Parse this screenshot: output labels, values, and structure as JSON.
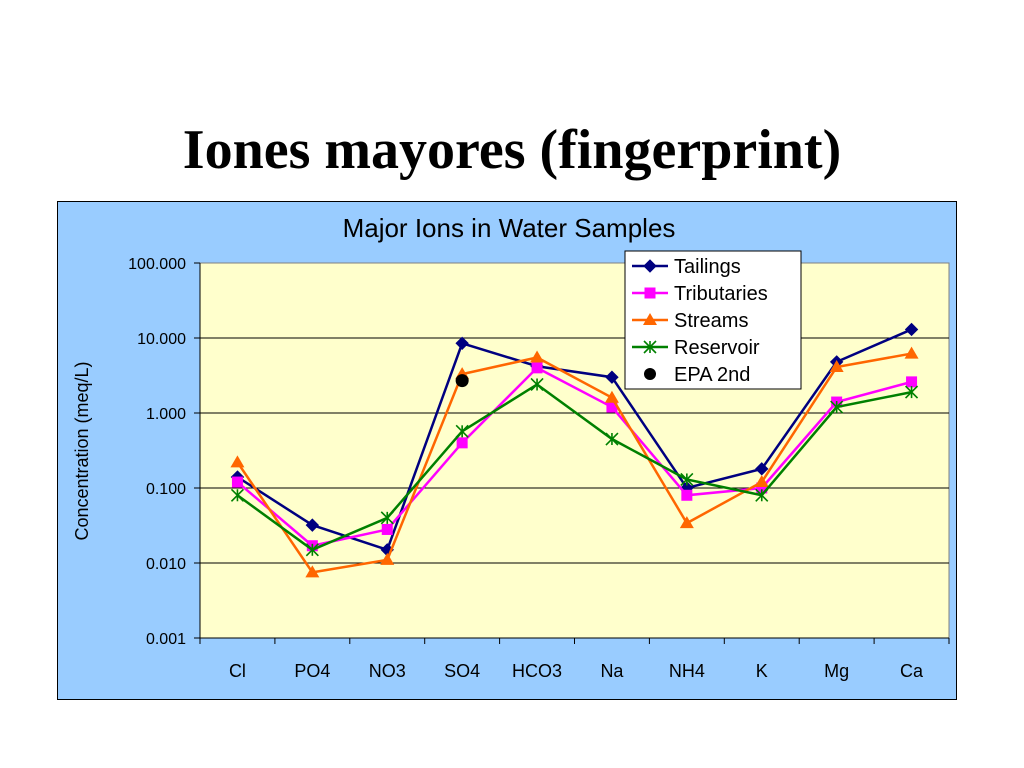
{
  "slide": {
    "title": "Iones mayores (fingerprint)"
  },
  "colors": {
    "chart_background": "#99ccff",
    "plot_background": "#ffffcc",
    "Tailings": "#000080",
    "Tributaries": "#ff00ff",
    "Streams": "#ff6600",
    "Reservoir": "#008000",
    "EPA 2nd": "#000000"
  },
  "chart_data": {
    "type": "line",
    "title": "Major Ions in Water Samples",
    "xlabel": "",
    "ylabel": "Concentration (meq/L)",
    "yscale": "log",
    "ylim": [
      0.001,
      100
    ],
    "ytick_labels": [
      "100.000",
      "10.000",
      "1.000",
      "0.100",
      "0.010",
      "0.001"
    ],
    "grid": "horizontal",
    "legend_position": "top-right",
    "categories": [
      "Cl",
      "PO4",
      "NO3",
      "SO4",
      "HCO3",
      "Na",
      "NH4",
      "K",
      "Mg",
      "Ca"
    ],
    "series": [
      {
        "name": "Tailings",
        "marker": "diamond",
        "values": [
          0.14,
          0.032,
          0.015,
          8.5,
          4.2,
          3.0,
          0.1,
          0.18,
          4.8,
          13.0
        ]
      },
      {
        "name": "Tributaries",
        "marker": "square",
        "values": [
          0.12,
          0.017,
          0.028,
          0.4,
          4.0,
          1.2,
          0.08,
          0.1,
          1.4,
          2.6
        ]
      },
      {
        "name": "Streams",
        "marker": "triangle",
        "values": [
          0.22,
          0.0075,
          0.011,
          3.3,
          5.5,
          1.6,
          0.034,
          0.12,
          4.1,
          6.2
        ]
      },
      {
        "name": "Reservoir",
        "marker": "asterisk",
        "values": [
          0.08,
          0.015,
          0.04,
          0.57,
          2.4,
          0.45,
          0.13,
          0.08,
          1.2,
          1.9
        ]
      },
      {
        "name": "EPA 2nd",
        "marker": "circle",
        "line": false,
        "values": [
          null,
          null,
          null,
          2.7,
          null,
          null,
          null,
          null,
          null,
          null
        ]
      }
    ]
  }
}
